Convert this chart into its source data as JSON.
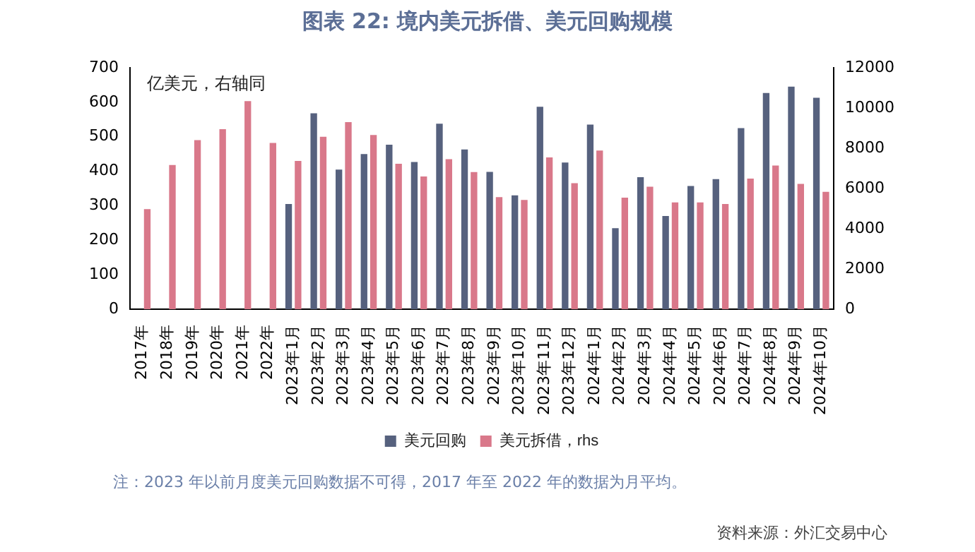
{
  "chart_data": {
    "type": "bar",
    "title": "图表 22: 境内美元拆借、美元回购规模",
    "categories": [
      "2017年",
      "2018年",
      "2019年",
      "2020年",
      "2021年",
      "2022年",
      "2023年1月",
      "2023年2月",
      "2023年3月",
      "2023年4月",
      "2023年5月",
      "2023年6月",
      "2023年7月",
      "2023年8月",
      "2023年9月",
      "2023年10月",
      "2023年11月",
      "2023年12月",
      "2024年1月",
      "2024年2月",
      "2024年3月",
      "2024年4月",
      "2024年5月",
      "2024年6月",
      "2024年7月",
      "2024年8月",
      "2024年9月",
      "2024年10月"
    ],
    "series": [
      {
        "name": "美元回购",
        "color": "#56617e",
        "values": [
          null,
          null,
          null,
          null,
          null,
          null,
          305,
          568,
          405,
          450,
          477,
          427,
          538,
          463,
          398,
          330,
          587,
          425,
          535,
          235,
          383,
          270,
          357,
          377,
          525,
          627,
          645,
          613
        ]
      },
      {
        "name": "美元拆借，rhs",
        "color": "#d9788a",
        "axis": "y2",
        "values": [
          4970,
          7170,
          8400,
          8950,
          10340,
          8260,
          7370,
          8570,
          9300,
          8660,
          7230,
          6600,
          7460,
          6820,
          5570,
          5430,
          7540,
          6260,
          7890,
          5540,
          6090,
          5310,
          5310,
          5230,
          6490,
          7140,
          6230,
          5830
        ]
      }
    ],
    "ylim": [
      0,
      700
    ],
    "yticks": [
      0,
      100,
      200,
      300,
      400,
      500,
      600,
      700
    ],
    "y2lim": [
      0,
      12000
    ],
    "y2ticks": [
      0,
      2000,
      4000,
      6000,
      8000,
      10000,
      12000
    ],
    "grid": false,
    "legend": "bottom",
    "annotations": [
      "亿美元，右轴同",
      "注：2023 年以前月度美元回购数据不可得，2017 年至 2022 年的数据为月平均。",
      "资料来源：外汇交易中心"
    ]
  }
}
